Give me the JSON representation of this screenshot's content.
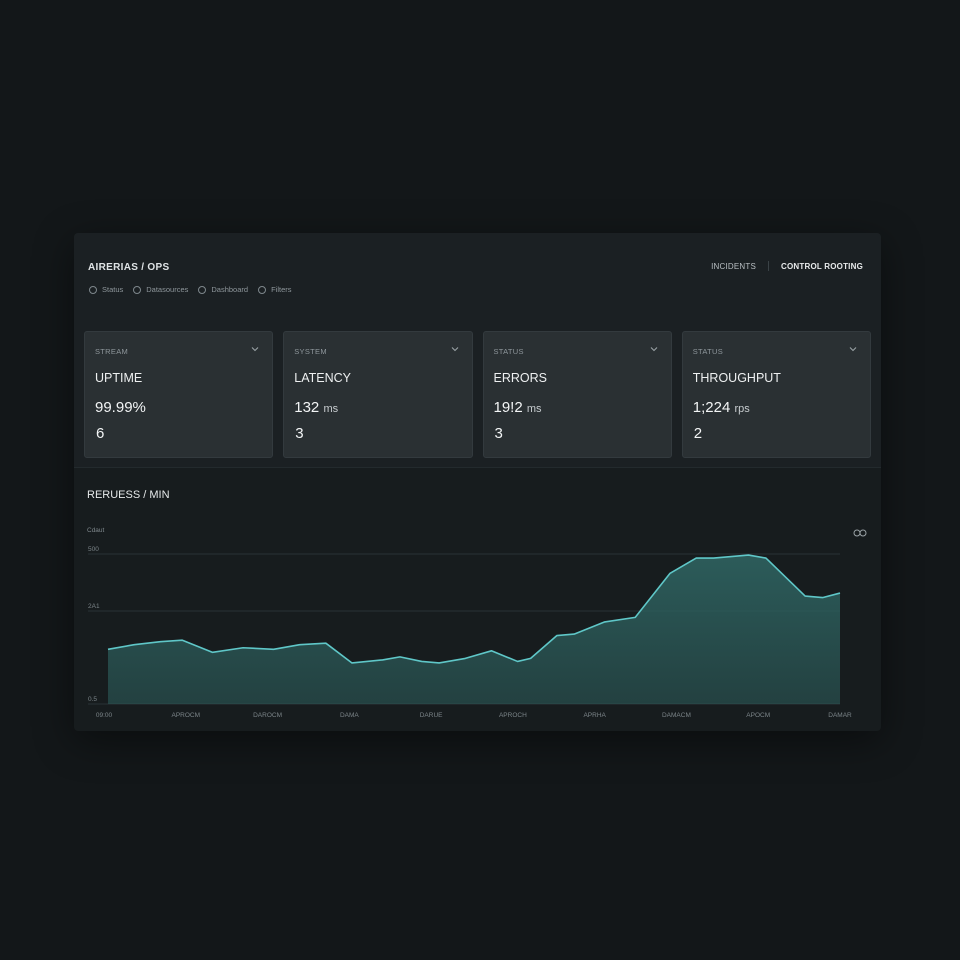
{
  "header": {
    "title": "AIRERIAS / OPS",
    "links": [
      "INCIDENTS"
    ],
    "primary_action": "CONTROL ROOTING"
  },
  "filters": [
    {
      "label": "Status"
    },
    {
      "label": "Datasources"
    },
    {
      "label": "Dashboard"
    },
    {
      "label": "Filters"
    }
  ],
  "cards": [
    {
      "kicker": "STREAM",
      "title": "UPTIME",
      "value": "99.99%",
      "unit": "",
      "count": "6"
    },
    {
      "kicker": "SYSTEM",
      "title": "LATENCY",
      "value": "132",
      "unit": "ms",
      "count": "3"
    },
    {
      "kicker": "STATUS",
      "title": "ERRORS",
      "value": "19!2",
      "unit": "ms",
      "count": "3"
    },
    {
      "kicker": "STATUS",
      "title": "THROUGHPUT",
      "value": "1;224",
      "unit": "rps",
      "count": "2"
    }
  ],
  "chart": {
    "title": "RERUESS / MIN",
    "subtitle": "Cdaut",
    "icon": "settings-icon",
    "accent_color": "#5fc7c8",
    "fill_color": "#2d5f5d"
  },
  "chart_data": {
    "type": "area",
    "title": "RERUESS / MIN",
    "xlabel": "",
    "ylabel": "",
    "y_ticks": [
      "0.5",
      "2A1",
      "500"
    ],
    "x_ticks": [
      "09:00",
      "APROCM",
      "DAROCM",
      "DAMA",
      "DARUE",
      "APROCH",
      "APRHA",
      "DAMACM",
      "APOCM",
      "DAMAR"
    ],
    "ylim": [
      0,
      1000
    ],
    "points": [
      {
        "x": 0,
        "y": 360
      },
      {
        "x": 0.06,
        "y": 390
      },
      {
        "x": 0.12,
        "y": 410
      },
      {
        "x": 0.17,
        "y": 420
      },
      {
        "x": 0.24,
        "y": 340
      },
      {
        "x": 0.31,
        "y": 370
      },
      {
        "x": 0.38,
        "y": 360
      },
      {
        "x": 0.44,
        "y": 390
      },
      {
        "x": 0.5,
        "y": 400
      },
      {
        "x": 0.56,
        "y": 270
      },
      {
        "x": 0.63,
        "y": 290
      },
      {
        "x": 0.67,
        "y": 310
      },
      {
        "x": 0.72,
        "y": 280
      },
      {
        "x": 0.76,
        "y": 270
      },
      {
        "x": 0.82,
        "y": 300
      },
      {
        "x": 0.88,
        "y": 350
      },
      {
        "x": 0.94,
        "y": 280
      },
      {
        "x": 0.97,
        "y": 300
      },
      {
        "x": 1.03,
        "y": 450
      },
      {
        "x": 1.07,
        "y": 460
      },
      {
        "x": 1.14,
        "y": 540
      },
      {
        "x": 1.21,
        "y": 570
      },
      {
        "x": 1.29,
        "y": 860
      },
      {
        "x": 1.35,
        "y": 960
      },
      {
        "x": 1.39,
        "y": 960
      },
      {
        "x": 1.47,
        "y": 980
      },
      {
        "x": 1.51,
        "y": 960
      },
      {
        "x": 1.6,
        "y": 710
      },
      {
        "x": 1.64,
        "y": 700
      },
      {
        "x": 1.68,
        "y": 730
      }
    ],
    "grid": true
  }
}
